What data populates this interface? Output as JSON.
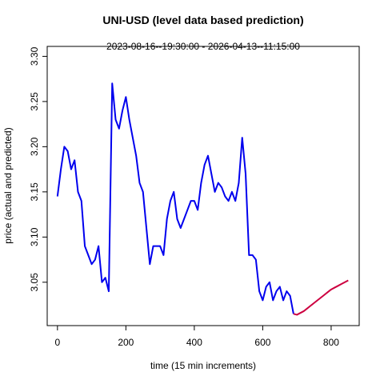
{
  "chart_data": {
    "type": "line",
    "title": "UNI-USD (level data based prediction)",
    "subtitle": "2023-08-16--19:30:00  -  2026-04-13--11:15:00",
    "xlabel": "time (15 min increments)",
    "ylabel": "price (actual and predicted)",
    "x": [
      0,
      10,
      20,
      30,
      40,
      50,
      60,
      70,
      80,
      90,
      100,
      110,
      120,
      130,
      140,
      150,
      160,
      170,
      180,
      190,
      200,
      210,
      220,
      230,
      240,
      250,
      260,
      270,
      280,
      290,
      300,
      310,
      320,
      330,
      340,
      350,
      360,
      370,
      380,
      390,
      400,
      410,
      420,
      430,
      440,
      450,
      460,
      470,
      480,
      490,
      500,
      510,
      520,
      530,
      540,
      550,
      560,
      570,
      580,
      590,
      600,
      610,
      620,
      630,
      640,
      650,
      660,
      670,
      680,
      690,
      700,
      710,
      720,
      730,
      740,
      750,
      760,
      770,
      780,
      790,
      800,
      810,
      820,
      830,
      840,
      850
    ],
    "series": [
      {
        "color": "#0000ee",
        "values": [
          3.145,
          3.175,
          3.2,
          3.195,
          3.175,
          3.185,
          3.15,
          3.14,
          3.09,
          3.08,
          3.07,
          3.075,
          3.09,
          3.05,
          3.055,
          3.04,
          3.27,
          3.23,
          3.22,
          3.24,
          3.255,
          3.23,
          3.21,
          3.19,
          3.16,
          3.15,
          3.11,
          3.07,
          3.09,
          3.09,
          3.09,
          3.08,
          3.12,
          3.14,
          3.15,
          3.12,
          3.11,
          3.12,
          3.13,
          3.14,
          3.14,
          3.13,
          3.16,
          3.18,
          3.19,
          3.17,
          3.15,
          3.16,
          3.155,
          3.145,
          3.14,
          3.15,
          3.14,
          3.16,
          3.21,
          3.17,
          3.08,
          3.08,
          3.075,
          3.04,
          3.03,
          3.045,
          3.05,
          3.03,
          3.04,
          3.045,
          3.03,
          3.04,
          3.035,
          3.015,
          null,
          null,
          null,
          null,
          null,
          null,
          null,
          null,
          null,
          null,
          null,
          null,
          null,
          null,
          null,
          null
        ]
      },
      {
        "color": "#cd0040",
        "values": [
          null,
          null,
          null,
          null,
          null,
          null,
          null,
          null,
          null,
          null,
          null,
          null,
          null,
          null,
          null,
          null,
          null,
          null,
          null,
          null,
          null,
          null,
          null,
          null,
          null,
          null,
          null,
          null,
          null,
          null,
          null,
          null,
          null,
          null,
          null,
          null,
          null,
          null,
          null,
          null,
          null,
          null,
          null,
          null,
          null,
          null,
          null,
          null,
          null,
          null,
          null,
          null,
          null,
          null,
          null,
          null,
          null,
          null,
          null,
          null,
          null,
          null,
          null,
          null,
          null,
          null,
          null,
          null,
          null,
          3.015,
          3.014,
          3.016,
          3.018,
          3.021,
          3.024,
          3.027,
          3.03,
          3.033,
          3.036,
          3.039,
          3.042,
          3.044,
          3.046,
          3.048,
          3.05,
          3.052
        ]
      }
    ],
    "xlim": [
      -30,
      882
    ],
    "xticks": [
      0,
      200,
      400,
      600,
      800
    ],
    "ylim": [
      3.002,
      3.311
    ],
    "yticks": [
      3.05,
      {
        "value": 3.1,
        "label": "3.10"
      },
      3.15,
      {
        "value": 3.2,
        "label": "3.20"
      },
      3.25,
      {
        "value": 3.3,
        "label": "3.30"
      }
    ]
  }
}
